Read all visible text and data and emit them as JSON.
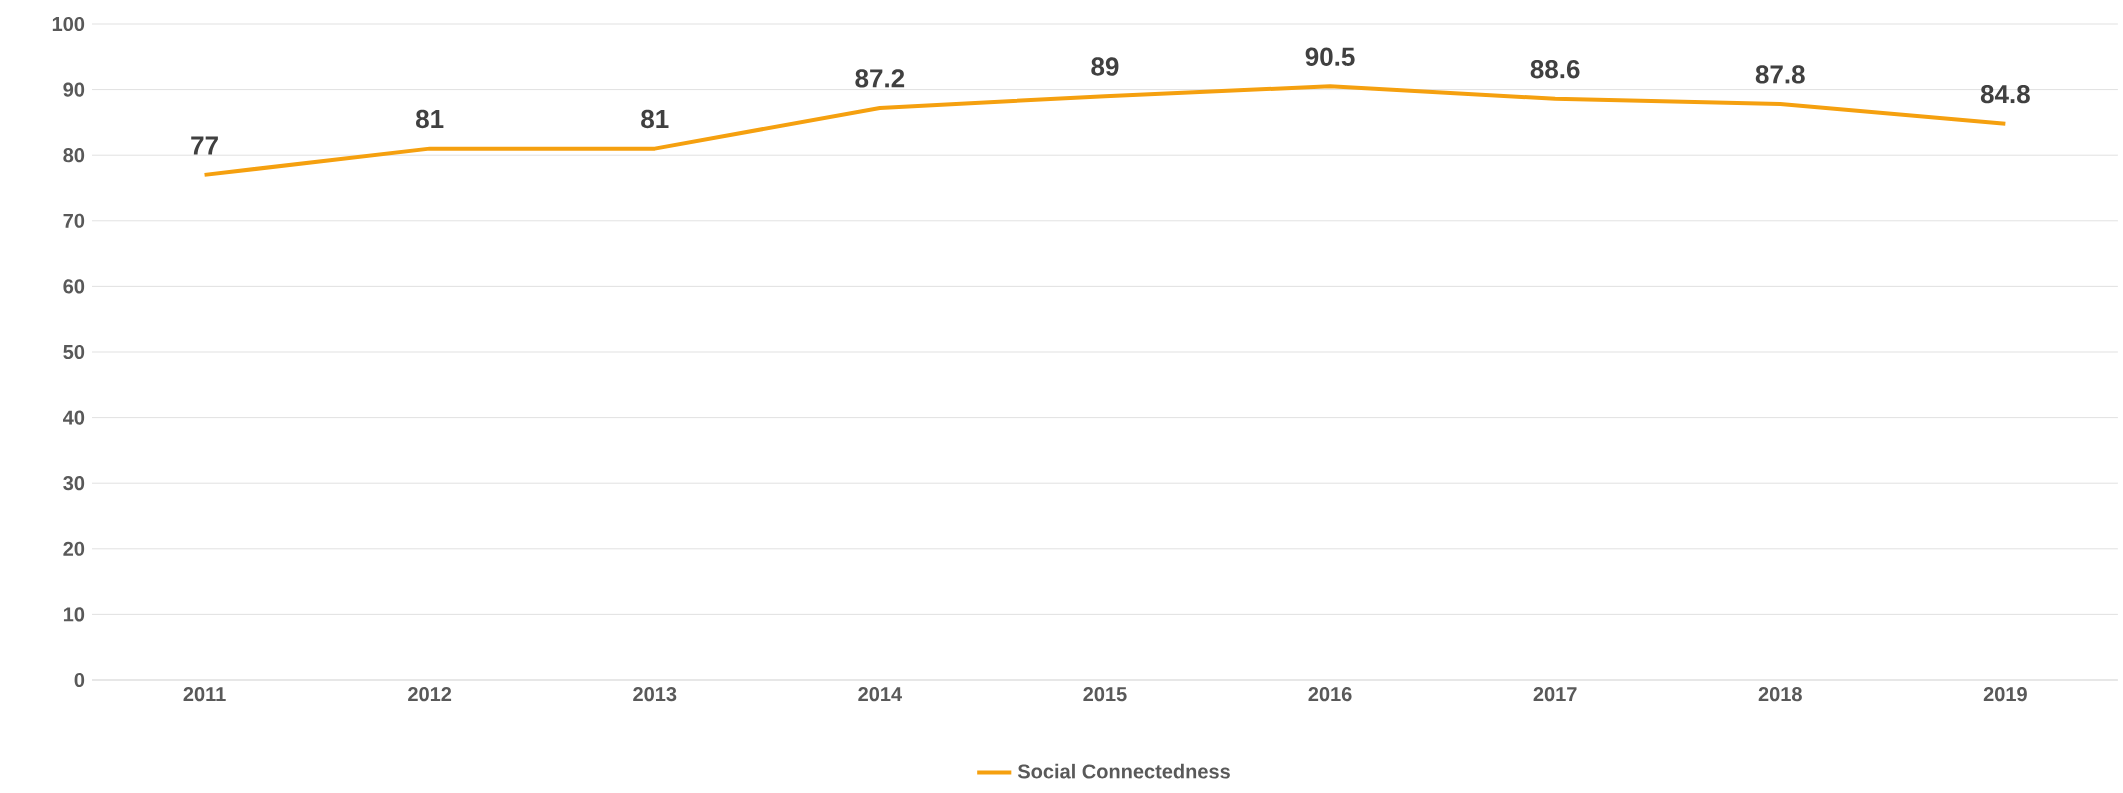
{
  "chart_data": {
    "type": "line",
    "categories": [
      "2011",
      "2012",
      "2013",
      "2014",
      "2015",
      "2016",
      "2017",
      "2018",
      "2019"
    ],
    "series": [
      {
        "name": "Social Connectedness",
        "color": "#f5a00f",
        "values": [
          77,
          81,
          81,
          87.2,
          89,
          90.5,
          88.6,
          87.8,
          84.8
        ]
      }
    ],
    "ylim": [
      0,
      100
    ],
    "yticks": [
      0,
      10,
      20,
      30,
      40,
      50,
      60,
      70,
      80,
      90,
      100
    ],
    "grid": "y",
    "legend": "bottom",
    "data_labels": true,
    "marker": "none",
    "line_style": "solid"
  }
}
